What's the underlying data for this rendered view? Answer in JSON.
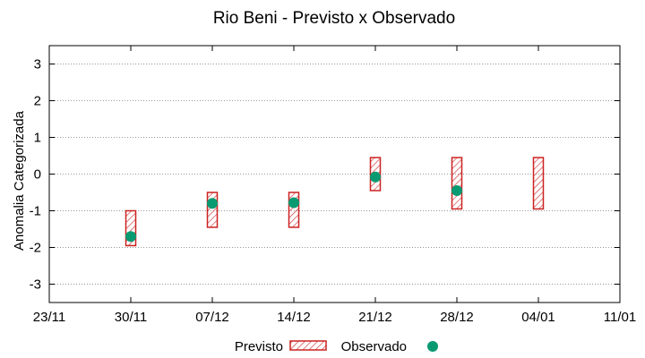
{
  "chart_data": {
    "type": "range-bar-with-markers",
    "title": "Rio Beni - Previsto x Observado",
    "xlabel": "",
    "ylabel": "Anomalia Categorizada",
    "x_tick_labels": [
      "23/11",
      "30/11",
      "07/12",
      "14/12",
      "21/12",
      "28/12",
      "04/01",
      "11/01"
    ],
    "y_tick_labels": [
      "-3",
      "-2",
      "-1",
      "0",
      "1",
      "2",
      "3"
    ],
    "ylim": [
      -3.5,
      3.5
    ],
    "grid": "horizontal dotted",
    "legend_position": "bottom",
    "previsto": {
      "name": "Previsto",
      "color": "#cc2222",
      "ranges": [
        {
          "x": "30/11",
          "low": -1.95,
          "high": -1.0
        },
        {
          "x": "07/12",
          "low": -1.45,
          "high": -0.5
        },
        {
          "x": "14/12",
          "low": -1.45,
          "high": -0.5
        },
        {
          "x": "21/12",
          "low": -0.45,
          "high": 0.45
        },
        {
          "x": "28/12",
          "low": -0.95,
          "high": 0.45
        },
        {
          "x": "04/01",
          "low": -0.95,
          "high": 0.45
        }
      ]
    },
    "observado": {
      "name": "Observado",
      "color": "#0a9a72",
      "points": [
        {
          "x": "30/11",
          "y": -1.7
        },
        {
          "x": "07/12",
          "y": -0.8
        },
        {
          "x": "14/12",
          "y": -0.78
        },
        {
          "x": "21/12",
          "y": -0.08
        },
        {
          "x": "28/12",
          "y": -0.45
        }
      ]
    }
  }
}
